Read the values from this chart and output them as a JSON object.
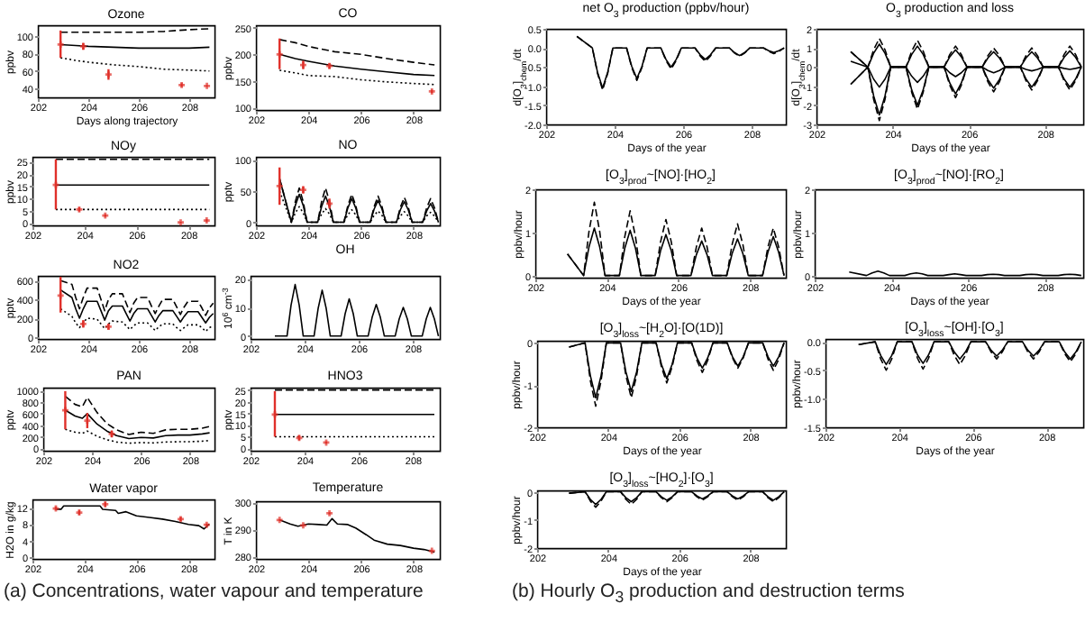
{
  "chart_data": [
    {
      "type": "line",
      "title": "Ozone",
      "xlabel": "Days along trajectory",
      "ylabel": "ppbv",
      "xlim": [
        202,
        209
      ],
      "xticks": [
        202,
        204,
        206,
        208
      ],
      "ylim": [
        30,
        112
      ],
      "yticks": [
        40,
        60,
        80,
        100
      ],
      "annotations": [
        "(a) Concentrations, water vapour and temperature"
      ],
      "series": [
        {
          "color": "#000000",
          "line_style": "solid",
          "x": [
            202.9,
            203.5,
            204,
            205,
            206,
            207,
            208,
            208.8
          ],
          "values": [
            90,
            89,
            88,
            87,
            86,
            86,
            86,
            87
          ]
        },
        {
          "color": "#000000",
          "line_style": "dashed",
          "x": [
            202.9,
            203.5,
            204,
            205,
            206,
            207,
            208,
            208.8
          ],
          "values": [
            104,
            104,
            104,
            104,
            104,
            105,
            107,
            108
          ]
        },
        {
          "color": "#000000",
          "line_style": "dotted",
          "x": [
            202.9,
            203.5,
            204,
            205,
            206,
            207,
            208,
            208.8
          ],
          "values": [
            75,
            72,
            70,
            67,
            65,
            62,
            61,
            60
          ]
        },
        {
          "type": "scatter",
          "color": "#e0302a",
          "marker": "cross",
          "x": [
            202.9,
            203.8,
            204.8,
            207.7,
            208.7
          ],
          "values": [
            90,
            88,
            56,
            44,
            43
          ],
          "errors": [
            [
              75,
              106
            ],
            4,
            6,
            2,
            1
          ]
        }
      ]
    },
    {
      "type": "line",
      "title": "CO",
      "ylabel": "ppbv",
      "xlim": [
        202,
        209
      ],
      "xticks": [
        202,
        204,
        206,
        208
      ],
      "ylim": [
        95,
        255
      ],
      "yticks": [
        100,
        150,
        200,
        250
      ],
      "series": [
        {
          "color": "#000000",
          "line_style": "solid",
          "x": [
            202.9,
            203.5,
            204,
            205,
            206,
            207,
            208,
            208.8
          ],
          "values": [
            200,
            192,
            187,
            178,
            172,
            167,
            162,
            160
          ]
        },
        {
          "color": "#000000",
          "line_style": "dashed",
          "x": [
            202.9,
            203.5,
            204,
            205,
            206,
            207,
            208,
            208.8
          ],
          "values": [
            228,
            222,
            215,
            205,
            200,
            192,
            185,
            180
          ]
        },
        {
          "color": "#000000",
          "line_style": "dotted",
          "x": [
            202.9,
            203.5,
            204,
            205,
            206,
            207,
            208,
            208.8
          ],
          "values": [
            170,
            165,
            160,
            158,
            152,
            148,
            145,
            143
          ]
        },
        {
          "type": "scatter",
          "color": "#e0302a",
          "marker": "cross",
          "x": [
            202.9,
            203.8,
            204.8,
            208.7
          ],
          "values": [
            200,
            180,
            178,
            130
          ],
          "errors": [
            [
              172,
              230
            ],
            8,
            5,
            3
          ]
        }
      ]
    },
    {
      "type": "line",
      "title": "NOy",
      "ylabel": "ppbv",
      "xlim": [
        202,
        209
      ],
      "xticks": [
        202,
        204,
        206,
        208
      ],
      "ylim": [
        -1,
        27
      ],
      "yticks": [
        0,
        5,
        10,
        15,
        20,
        25
      ],
      "series": [
        {
          "color": "#000000",
          "line_style": "solid",
          "x": [
            202.9,
            208.8
          ],
          "values": [
            15.5,
            15.5
          ]
        },
        {
          "color": "#000000",
          "line_style": "dashed",
          "x": [
            202.9,
            208.8
          ],
          "values": [
            26,
            26
          ]
        },
        {
          "color": "#000000",
          "line_style": "dotted",
          "x": [
            202.9,
            208.8
          ],
          "values": [
            5.5,
            5.5
          ]
        },
        {
          "type": "scatter",
          "color": "#e0302a",
          "marker": "cross",
          "x": [
            202.9,
            203.8,
            204.8,
            207.7,
            208.7
          ],
          "values": [
            15.5,
            5.5,
            3,
            0.2,
            1
          ],
          "errors": [
            [
              5.5,
              26
            ],
            0.8,
            0.5,
            0.3,
            0.5
          ]
        }
      ]
    },
    {
      "type": "line",
      "title": "NO",
      "ylabel": "pptv",
      "xlim": [
        202,
        209
      ],
      "xticks": [
        202,
        204,
        206,
        208
      ],
      "ylim": [
        -5,
        105
      ],
      "yticks": [
        0,
        50,
        100
      ],
      "x": [
        202.9,
        203.35,
        203.5,
        203.65,
        203.8,
        203.95,
        204.35,
        204.5,
        204.65,
        204.8,
        204.95,
        205.35,
        205.5,
        205.65,
        205.8,
        205.95,
        206.35,
        206.5,
        206.65,
        206.8,
        206.95,
        207.35,
        207.5,
        207.65,
        207.8,
        207.95,
        208.35,
        208.5,
        208.65,
        208.8,
        208.95
      ],
      "series": [
        {
          "color": "#000000",
          "line_style": "solid",
          "values": [
            70,
            0,
            27,
            45,
            27,
            0,
            0,
            25,
            42,
            25,
            0,
            0,
            23,
            38,
            23,
            0,
            0,
            21,
            35,
            21,
            0,
            0,
            20,
            33,
            20,
            0,
            0,
            18,
            30,
            18,
            0
          ]
        },
        {
          "color": "#000000",
          "line_style": "dashed",
          "values": [
            70,
            0,
            33,
            55,
            33,
            0,
            0,
            33,
            55,
            33,
            0,
            0,
            27,
            45,
            27,
            0,
            0,
            25,
            42,
            25,
            0,
            0,
            24,
            40,
            24,
            0,
            0,
            23,
            38,
            23,
            0
          ]
        },
        {
          "color": "#000000",
          "line_style": "dotted",
          "values": [
            50,
            0,
            15,
            25,
            15,
            0,
            0,
            13,
            22,
            13,
            0,
            0,
            12,
            20,
            12,
            0,
            0,
            11,
            18,
            11,
            0,
            0,
            10,
            17,
            10,
            0,
            0,
            10,
            16,
            10,
            0
          ]
        },
        {
          "type": "scatter",
          "color": "#e0302a",
          "marker": "cross",
          "x": [
            202.9,
            203.8,
            204.8
          ],
          "values": [
            58,
            52,
            30
          ],
          "errors": [
            [
              28,
              88
            ],
            6,
            8
          ]
        }
      ]
    },
    {
      "type": "line",
      "title": "NO2",
      "ylabel": "pptv",
      "xlim": [
        202,
        209
      ],
      "xticks": [
        202,
        204,
        206,
        208
      ],
      "ylim": [
        -20,
        650
      ],
      "yticks": [
        0,
        200,
        400,
        600
      ],
      "x": [
        202.9,
        203.35,
        203.5,
        203.65,
        203.8,
        203.95,
        204.35,
        204.5,
        204.65,
        204.8,
        204.95,
        205.35,
        205.5,
        205.65,
        205.8,
        205.95,
        206.35,
        206.5,
        206.65,
        206.8,
        206.95,
        207.35,
        207.5,
        207.65,
        207.8,
        207.95,
        208.35,
        208.5,
        208.65,
        208.8,
        208.95
      ],
      "series": [
        {
          "color": "#000000",
          "line_style": "solid",
          "values": [
            500,
            420,
            300,
            200,
            300,
            380,
            380,
            280,
            180,
            280,
            330,
            330,
            250,
            170,
            250,
            300,
            300,
            230,
            160,
            230,
            280,
            280,
            220,
            160,
            220,
            270,
            270,
            210,
            150,
            210,
            250
          ]
        },
        {
          "color": "#000000",
          "line_style": "dashed",
          "values": [
            600,
            560,
            420,
            300,
            420,
            520,
            520,
            400,
            280,
            400,
            460,
            460,
            360,
            260,
            360,
            420,
            420,
            330,
            250,
            330,
            400,
            400,
            320,
            240,
            320,
            380,
            380,
            310,
            230,
            310,
            360
          ]
        },
        {
          "color": "#000000",
          "line_style": "dotted",
          "values": [
            300,
            220,
            150,
            100,
            150,
            200,
            190,
            140,
            90,
            140,
            170,
            160,
            120,
            80,
            120,
            150,
            150,
            110,
            70,
            110,
            140,
            140,
            100,
            70,
            100,
            130,
            130,
            100,
            60,
            100,
            120
          ]
        },
        {
          "type": "scatter",
          "color": "#e0302a",
          "marker": "cross",
          "x": [
            202.9,
            203.8,
            204.8
          ],
          "values": [
            440,
            140,
            110
          ],
          "errors": [
            [
              260,
              640
            ],
            40,
            30
          ]
        }
      ]
    },
    {
      "type": "line",
      "title": "OH",
      "ylabel": "10$^{6}$ cm$^{-3}$",
      "xlim": [
        202,
        209
      ],
      "xticks": [
        202,
        204,
        206,
        208
      ],
      "ylim": [
        -1,
        21
      ],
      "yticks": [
        0,
        10,
        20
      ],
      "x": [
        202.9,
        203.35,
        203.5,
        203.65,
        203.8,
        203.95,
        204.35,
        204.5,
        204.65,
        204.8,
        204.95,
        205.35,
        205.5,
        205.65,
        205.8,
        205.95,
        206.35,
        206.5,
        206.65,
        206.8,
        206.95,
        207.35,
        207.5,
        207.65,
        207.8,
        207.95,
        208.35,
        208.5,
        208.65,
        208.8,
        208.95
      ],
      "series": [
        {
          "color": "#000000",
          "line_style": "solid",
          "values": [
            0,
            0,
            10.8,
            18,
            10.8,
            0,
            0,
            9.6,
            16,
            9.6,
            0,
            0,
            7.8,
            13,
            7.8,
            0,
            0,
            6.6,
            11,
            6.6,
            0,
            0,
            6,
            10,
            6,
            0,
            0,
            6,
            10,
            6,
            0
          ]
        }
      ]
    },
    {
      "type": "line",
      "title": "PAN",
      "ylabel": "pptv",
      "xlim": [
        202,
        209
      ],
      "xticks": [
        202,
        204,
        206,
        208
      ],
      "ylim": [
        -40,
        1050
      ],
      "yticks": [
        0,
        200,
        400,
        600,
        800,
        1000
      ],
      "series": [
        {
          "color": "#000000",
          "line_style": "solid",
          "x": [
            202.9,
            203.3,
            203.6,
            203.8,
            204.2,
            204.6,
            205,
            205.5,
            206,
            206.5,
            207,
            207.5,
            208,
            208.5,
            208.8
          ],
          "values": [
            660,
            560,
            520,
            600,
            420,
            300,
            220,
            170,
            190,
            180,
            220,
            230,
            230,
            250,
            270
          ]
        },
        {
          "color": "#000000",
          "line_style": "dashed",
          "x": [
            202.9,
            203.3,
            203.6,
            203.8,
            204.2,
            204.6,
            205,
            205.5,
            206,
            206.5,
            207,
            207.5,
            208,
            208.5,
            208.8
          ],
          "values": [
            900,
            760,
            720,
            880,
            620,
            430,
            320,
            240,
            280,
            260,
            320,
            330,
            330,
            350,
            380
          ]
        },
        {
          "color": "#000000",
          "line_style": "dotted",
          "x": [
            202.9,
            203.3,
            203.6,
            203.8,
            204.2,
            204.6,
            205,
            205.5,
            206,
            206.5,
            207,
            207.5,
            208,
            208.5,
            208.8
          ],
          "values": [
            330,
            280,
            260,
            300,
            210,
            150,
            110,
            90,
            100,
            95,
            110,
            115,
            115,
            125,
            135
          ]
        },
        {
          "type": "scatter",
          "color": "#e0302a",
          "marker": "cross",
          "x": [
            202.9,
            203.8,
            204.8
          ],
          "values": [
            660,
            480,
            250
          ],
          "errors": [
            [
              330,
              990
            ],
            130,
            60
          ]
        }
      ]
    },
    {
      "type": "line",
      "title": "HNO3",
      "ylabel": "pptv",
      "xlim": [
        202,
        209
      ],
      "xticks": [
        202,
        204,
        206,
        208
      ],
      "ylim": [
        -1,
        26
      ],
      "yticks": [
        0,
        5,
        10,
        15,
        20,
        25
      ],
      "series": [
        {
          "color": "#000000",
          "line_style": "solid",
          "x": [
            202.9,
            208.8
          ],
          "values": [
            14.5,
            14.5
          ]
        },
        {
          "color": "#000000",
          "line_style": "dashed",
          "x": [
            202.9,
            208.8
          ],
          "values": [
            25,
            25
          ]
        },
        {
          "color": "#000000",
          "line_style": "dotted",
          "x": [
            202.9,
            208.8
          ],
          "values": [
            5,
            5
          ]
        },
        {
          "type": "scatter",
          "color": "#e0302a",
          "marker": "cross",
          "x": [
            202.9,
            203.8,
            204.8
          ],
          "values": [
            14.5,
            4.5,
            2.5
          ],
          "errors": [
            [
              5,
              24.5
            ],
            1,
            0.5
          ]
        }
      ]
    },
    {
      "type": "line",
      "title": "Water vapor",
      "ylabel": "H2O in g/kg",
      "xlim": [
        202,
        209
      ],
      "xticks": [
        202,
        204,
        206,
        208
      ],
      "ylim": [
        -0.5,
        14
      ],
      "yticks": [
        0,
        4,
        8,
        12
      ],
      "series": [
        {
          "color": "#000000",
          "line_style": "solid",
          "x": [
            202.9,
            203.1,
            203.2,
            204.6,
            204.7,
            205.2,
            205.3,
            205.6,
            206,
            206.5,
            207,
            207.5,
            208,
            208.4,
            208.6,
            208.8
          ],
          "values": [
            11.6,
            11.6,
            12.4,
            12.4,
            11.6,
            11.3,
            10.6,
            11,
            10,
            9.6,
            9.2,
            8.6,
            7.9,
            7.6,
            6.8,
            8
          ]
        },
        {
          "type": "scatter",
          "color": "#e0302a",
          "marker": "cross",
          "x": [
            202.9,
            203.8,
            204.8,
            207.7,
            208.7
          ],
          "values": [
            11.8,
            10.8,
            12.8,
            9.2,
            7.8
          ],
          "errors": [
            0.4,
            0.5,
            0.5,
            0.5,
            0.3
          ]
        }
      ]
    },
    {
      "type": "line",
      "title": "Temperature",
      "ylabel": "T in K",
      "xlim": [
        202,
        209
      ],
      "xticks": [
        202,
        204,
        206,
        208
      ],
      "ylim": [
        279,
        300.5
      ],
      "yticks": [
        280,
        290,
        300
      ],
      "series": [
        {
          "color": "#000000",
          "line_style": "solid",
          "x": [
            202.9,
            203.3,
            203.6,
            204,
            204.4,
            204.7,
            204.9,
            205.1,
            205.5,
            205.8,
            206.2,
            206.5,
            207,
            207.5,
            208,
            208.4,
            208.8
          ],
          "values": [
            293.5,
            292,
            291.2,
            292,
            291.8,
            291.6,
            294,
            292,
            291.8,
            290.5,
            288,
            286,
            284.5,
            284,
            283,
            282.5,
            281.5
          ]
        },
        {
          "type": "scatter",
          "color": "#e0302a",
          "marker": "cross",
          "x": [
            202.9,
            203.8,
            204.8,
            208.7
          ],
          "values": [
            293.5,
            291.5,
            296,
            282
          ],
          "errors": [
            0.3,
            0.3,
            0.4,
            0.3
          ]
        }
      ]
    },
    {
      "type": "line",
      "title": "net O$_{3}$ production (ppbv/hour)",
      "xlabel": "Days of the year",
      "ylabel": "d[O$_{3}$]$_{chem}$/dt",
      "xlim": [
        202,
        209
      ],
      "xticks": [
        202,
        204,
        206,
        208
      ],
      "ylim": [
        -2,
        0.5
      ],
      "yticks": [
        0.5,
        {
          "value": 0,
          "label": "0.0"
        },
        -0.5,
        {
          "value": -1,
          "label": "-1.0"
        },
        -1.5,
        {
          "value": -2,
          "label": "-2.0"
        }
      ],
      "annotations": [
        "(b) Hourly O$_{3}$ production and destruction terms"
      ],
      "x": [
        202.9,
        203.35,
        203.5,
        203.65,
        203.8,
        203.95,
        204.35,
        204.5,
        204.65,
        204.8,
        204.95,
        205.35,
        205.5,
        205.65,
        205.8,
        205.95,
        206.35,
        206.5,
        206.65,
        206.8,
        206.95,
        207.35,
        207.5,
        207.65,
        207.8,
        207.95,
        208.35,
        208.5,
        208.65,
        208.8,
        208.95
      ],
      "series": [
        {
          "color": "#000000",
          "line_style": "solid",
          "values": [
            0.3,
            0,
            -0.63,
            -1.05,
            -0.63,
            0,
            0,
            -0.48,
            -0.8,
            -0.48,
            0,
            0,
            -0.3,
            -0.5,
            -0.3,
            0,
            0,
            -0.18,
            -0.3,
            -0.18,
            0,
            0,
            -0.12,
            -0.2,
            -0.12,
            0,
            0,
            -0.07,
            -0.12,
            -0.07,
            0
          ]
        },
        {
          "color": "#000000",
          "line_style": "dashed",
          "values": [
            0.3,
            0,
            -0.66,
            -1.1,
            -0.66,
            0,
            0,
            -0.51,
            -0.85,
            -0.51,
            0,
            0,
            -0.33,
            -0.55,
            -0.33,
            0,
            0,
            -0.21,
            -0.35,
            -0.21,
            0,
            0,
            -0.13,
            -0.22,
            -0.13,
            0,
            0,
            -0.09,
            -0.15,
            -0.09,
            0
          ]
        }
      ]
    },
    {
      "type": "line",
      "title": "O$_{3}$ production and loss",
      "xlabel": "Days of the year",
      "ylabel": "d[O$_{3}$]$_{chem}$/dt",
      "xlim": [
        202,
        209
      ],
      "xticks": [
        202,
        204,
        206,
        208
      ],
      "ylim": [
        -3,
        2
      ],
      "yticks": [
        -3,
        -2,
        -1,
        0,
        1,
        2
      ],
      "x": [
        202.9,
        203.35,
        203.5,
        203.65,
        203.8,
        203.95,
        204.35,
        204.5,
        204.65,
        204.8,
        204.95,
        205.35,
        205.5,
        205.65,
        205.8,
        205.95,
        206.35,
        206.5,
        206.65,
        206.8,
        206.95,
        207.35,
        207.5,
        207.65,
        207.8,
        207.95,
        208.35,
        208.5,
        208.65,
        208.8,
        208.95
      ],
      "series": [
        {
          "color": "#000000",
          "line_style": "solid",
          "values": [
            0.8,
            0,
            0.72,
            1.2,
            0.72,
            0,
            0,
            0.66,
            1.1,
            0.66,
            0,
            0,
            0.54,
            0.9,
            0.54,
            0,
            0,
            0.48,
            0.8,
            0.48,
            0,
            0,
            0.48,
            0.8,
            0.48,
            0,
            0,
            0.51,
            0.85,
            0.51,
            0
          ]
        },
        {
          "color": "#000000",
          "line_style": "solid",
          "values": [
            -0.9,
            0,
            -1.5,
            -2.5,
            -1.5,
            0,
            0,
            -1.2,
            -2,
            -1.2,
            0,
            0,
            -0.84,
            -1.4,
            -0.84,
            0,
            0,
            -0.66,
            -1.1,
            -0.66,
            0,
            0,
            -0.63,
            -1.05,
            -0.63,
            0,
            0,
            -0.63,
            -1.05,
            -0.63,
            0
          ]
        },
        {
          "color": "#000000",
          "line_style": "solid",
          "values": [
            0.3,
            0,
            -0.63,
            -1.05,
            -0.63,
            0,
            0,
            -0.48,
            -0.8,
            -0.48,
            0,
            0,
            -0.3,
            -0.5,
            -0.3,
            0,
            0,
            -0.18,
            -0.3,
            -0.18,
            0,
            0,
            -0.12,
            -0.2,
            -0.12,
            0,
            0,
            -0.07,
            -0.12,
            -0.07,
            0
          ]
        },
        {
          "color": "#000000",
          "line_style": "dashed",
          "values": [
            0.8,
            0,
            0.9,
            1.5,
            0.9,
            0,
            0,
            0.84,
            1.4,
            0.84,
            0,
            0,
            0.66,
            1.1,
            0.66,
            0,
            0,
            0.6,
            1,
            0.6,
            0,
            0,
            0.6,
            1,
            0.6,
            0,
            0,
            0.66,
            1.1,
            0.66,
            0
          ]
        },
        {
          "color": "#000000",
          "line_style": "dashed",
          "values": [
            -0.9,
            0,
            -1.68,
            -2.8,
            -1.68,
            0,
            0,
            -1.32,
            -2.2,
            -1.32,
            0,
            0,
            -0.96,
            -1.6,
            -0.96,
            0,
            0,
            -0.78,
            -1.3,
            -0.78,
            0,
            0,
            -0.72,
            -1.2,
            -0.72,
            0,
            0,
            -0.72,
            -1.2,
            -0.72,
            0
          ]
        }
      ]
    },
    {
      "type": "line",
      "title": "[O$_{3}$]$_{prod}$~[NO]·[HO$_{2}$]",
      "xlabel": "Days of the year",
      "ylabel": "ppbv/hour",
      "xlim": [
        202,
        209
      ],
      "xticks": [
        202,
        204,
        206,
        208
      ],
      "ylim": [
        -0.05,
        2
      ],
      "yticks": [
        0,
        1,
        2
      ],
      "x": [
        202.9,
        203.35,
        203.5,
        203.65,
        203.8,
        203.95,
        204.35,
        204.5,
        204.65,
        204.8,
        204.95,
        205.35,
        205.5,
        205.65,
        205.8,
        205.95,
        206.35,
        206.5,
        206.65,
        206.8,
        206.95,
        207.35,
        207.5,
        207.65,
        207.8,
        207.95,
        208.35,
        208.5,
        208.65,
        208.8,
        208.95
      ],
      "series": [
        {
          "color": "#000000",
          "line_style": "solid",
          "values": [
            0.5,
            0,
            0.66,
            1.1,
            0.66,
            0,
            0,
            0.63,
            1.05,
            0.63,
            0,
            0,
            0.57,
            0.95,
            0.57,
            0,
            0,
            0.48,
            0.8,
            0.48,
            0,
            0,
            0.51,
            0.85,
            0.51,
            0,
            0,
            0.54,
            0.9,
            0.54,
            0
          ]
        },
        {
          "color": "#000000",
          "line_style": "dashed",
          "values": [
            0.5,
            0,
            1.02,
            1.7,
            1.02,
            0,
            0,
            0.9,
            1.5,
            0.9,
            0,
            0,
            0.78,
            1.3,
            0.78,
            0,
            0,
            0.66,
            1.1,
            0.66,
            0,
            0,
            0.72,
            1.2,
            0.72,
            0,
            0,
            0.66,
            1.1,
            0.66,
            0
          ]
        }
      ]
    },
    {
      "type": "line",
      "title": "[O$_{3}$]$_{prod}$~[NO]·[RO$_{2}$]",
      "xlabel": "Days of the year",
      "ylabel": "ppbv/hour",
      "xlim": [
        202,
        209
      ],
      "xticks": [
        202,
        204,
        206,
        208
      ],
      "ylim": [
        -0.05,
        2
      ],
      "yticks": [
        0,
        1,
        2
      ],
      "x": [
        202.9,
        203.35,
        203.5,
        203.65,
        203.8,
        203.95,
        204.35,
        204.5,
        204.65,
        204.8,
        204.95,
        205.35,
        205.5,
        205.65,
        205.8,
        205.95,
        206.35,
        206.5,
        206.65,
        206.8,
        206.95,
        207.35,
        207.5,
        207.65,
        207.8,
        207.95,
        208.35,
        208.5,
        208.65,
        208.8,
        208.95
      ],
      "series": [
        {
          "color": "#000000",
          "line_style": "solid",
          "values": [
            0.08,
            0,
            0.06,
            0.1,
            0.06,
            0,
            0,
            0.04,
            0.06,
            0.04,
            0,
            0,
            0.02,
            0.04,
            0.02,
            0,
            0,
            0.02,
            0.03,
            0.02,
            0,
            0,
            0.02,
            0.03,
            0.02,
            0,
            0,
            0.02,
            0.03,
            0.02,
            0
          ]
        }
      ]
    },
    {
      "type": "line",
      "title": "[O$_{3}$]$_{loss}$~[H$_{2}$O]·[O(1D)]",
      "xlabel": "Days of the year",
      "ylabel": "ppbv/hour",
      "xlim": [
        202,
        209
      ],
      "xticks": [
        202,
        204,
        206,
        208
      ],
      "ylim": [
        -2,
        0.05
      ],
      "yticks": [
        0,
        -1,
        -2
      ],
      "x": [
        202.9,
        203.35,
        203.5,
        203.65,
        203.8,
        203.95,
        204.35,
        204.5,
        204.65,
        204.8,
        204.95,
        205.35,
        205.5,
        205.65,
        205.8,
        205.95,
        206.35,
        206.5,
        206.65,
        206.8,
        206.95,
        207.35,
        207.5,
        207.65,
        207.8,
        207.95,
        208.35,
        208.5,
        208.65,
        208.8,
        208.95
      ],
      "series": [
        {
          "color": "#000000",
          "line_style": "solid",
          "values": [
            -0.1,
            0,
            -0.78,
            -1.3,
            -0.78,
            0,
            0,
            -0.69,
            -1.15,
            -0.69,
            0,
            0,
            -0.51,
            -0.85,
            -0.51,
            0,
            0,
            -0.36,
            -0.6,
            -0.36,
            0,
            0,
            -0.33,
            -0.55,
            -0.33,
            0,
            0,
            -0.33,
            -0.55,
            -0.33,
            0
          ]
        },
        {
          "color": "#000000",
          "line_style": "dashed",
          "values": [
            -0.1,
            0,
            -0.9,
            -1.5,
            -0.9,
            0,
            0,
            -0.78,
            -1.3,
            -0.78,
            0,
            0,
            -0.57,
            -0.95,
            -0.57,
            0,
            0,
            -0.42,
            -0.7,
            -0.42,
            0,
            0,
            -0.36,
            -0.6,
            -0.36,
            0,
            0,
            -0.39,
            -0.65,
            -0.39,
            0
          ]
        }
      ]
    },
    {
      "type": "line",
      "title": "[O$_{3}$]$_{loss}$~[OH]·[O$_{3}$]",
      "xlabel": "Days of the year",
      "ylabel": "ppbv/hour",
      "xlim": [
        202,
        209
      ],
      "xticks": [
        202,
        204,
        206,
        208
      ],
      "ylim": [
        -1.5,
        0.05
      ],
      "yticks": [
        {
          "value": 0,
          "label": "0.0"
        },
        -0.5,
        {
          "value": -1,
          "label": "-1.0"
        },
        -1.5
      ],
      "x": [
        202.9,
        203.35,
        203.5,
        203.65,
        203.8,
        203.95,
        204.35,
        204.5,
        204.65,
        204.8,
        204.95,
        205.35,
        205.5,
        205.65,
        205.8,
        205.95,
        206.35,
        206.5,
        206.65,
        206.8,
        206.95,
        207.35,
        207.5,
        207.65,
        207.8,
        207.95,
        208.35,
        208.5,
        208.65,
        208.8,
        208.95
      ],
      "series": [
        {
          "color": "#000000",
          "line_style": "solid",
          "values": [
            -0.05,
            0,
            -0.24,
            -0.4,
            -0.24,
            0,
            0,
            -0.23,
            -0.38,
            -0.23,
            0,
            0,
            -0.18,
            -0.3,
            -0.18,
            0,
            0,
            -0.15,
            -0.25,
            -0.15,
            0,
            0,
            -0.15,
            -0.25,
            -0.15,
            0,
            0,
            -0.18,
            -0.3,
            -0.18,
            0
          ]
        },
        {
          "color": "#000000",
          "line_style": "dashed",
          "values": [
            -0.05,
            0,
            -0.3,
            -0.5,
            -0.3,
            0,
            0,
            -0.29,
            -0.48,
            -0.29,
            0,
            0,
            -0.24,
            -0.4,
            -0.24,
            0,
            0,
            -0.18,
            -0.3,
            -0.18,
            0,
            0,
            -0.18,
            -0.3,
            -0.18,
            0,
            0,
            -0.21,
            -0.35,
            -0.21,
            0
          ]
        }
      ]
    },
    {
      "type": "line",
      "title": "[O$_{3}$]$_{loss}$~[HO$_{2}$]·[O$_{3}$]",
      "xlabel": "Days of the year",
      "ylabel": "ppbv/hour",
      "xlim": [
        202,
        209
      ],
      "xticks": [
        202,
        204,
        206,
        208
      ],
      "ylim": [
        -2,
        0.05
      ],
      "yticks": [
        0,
        -1,
        -2
      ],
      "x": [
        202.9,
        203.35,
        203.5,
        203.65,
        203.8,
        203.95,
        204.35,
        204.5,
        204.65,
        204.8,
        204.95,
        205.35,
        205.5,
        205.65,
        205.8,
        205.95,
        206.35,
        206.5,
        206.65,
        206.8,
        206.95,
        207.35,
        207.5,
        207.65,
        207.8,
        207.95,
        208.35,
        208.5,
        208.65,
        208.8,
        208.95
      ],
      "series": [
        {
          "color": "#000000",
          "line_style": "solid",
          "values": [
            -0.05,
            0,
            -0.27,
            -0.45,
            -0.27,
            0,
            0,
            -0.21,
            -0.35,
            -0.21,
            0,
            0,
            -0.18,
            -0.3,
            -0.18,
            0,
            0,
            -0.15,
            -0.25,
            -0.15,
            0,
            0,
            -0.15,
            -0.25,
            -0.15,
            0,
            0,
            -0.18,
            -0.3,
            -0.18,
            0
          ]
        },
        {
          "color": "#000000",
          "line_style": "dashed",
          "values": [
            -0.05,
            0,
            -0.33,
            -0.55,
            -0.33,
            0,
            0,
            -0.27,
            -0.45,
            -0.27,
            0,
            0,
            -0.21,
            -0.35,
            -0.21,
            0,
            0,
            -0.18,
            -0.3,
            -0.18,
            0,
            0,
            -0.18,
            -0.3,
            -0.18,
            0,
            0,
            -0.21,
            -0.35,
            -0.21,
            0
          ]
        }
      ]
    }
  ]
}
